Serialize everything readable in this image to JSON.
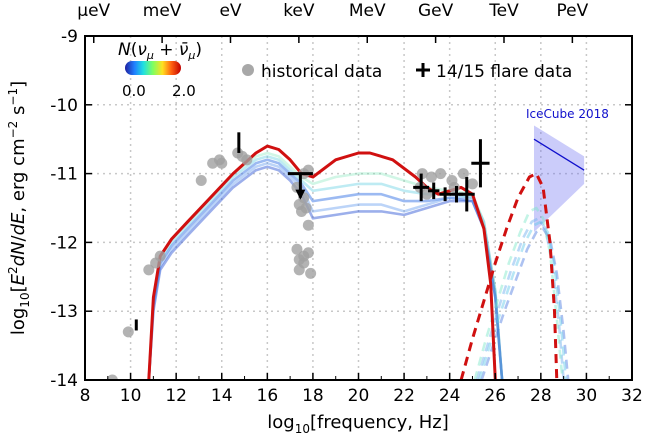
{
  "chart_data": {
    "type": "line",
    "xlabel": "log$_{10}$[frequency, Hz]",
    "ylabel": "log$_{10}$[$E^2dN/dE$,  erg cm$^{-2}$ s$^{-1}$]",
    "xlim": [
      8,
      32
    ],
    "ylim": [
      -14,
      -9
    ],
    "x_ticks": [
      "8",
      "10",
      "12",
      "14",
      "16",
      "18",
      "20",
      "22",
      "24",
      "26",
      "28",
      "30",
      "32"
    ],
    "y_ticks": [
      "-14",
      "-13",
      "-12",
      "-11",
      "-10",
      "-9"
    ],
    "top_axis": {
      "labels": [
        "μeV",
        "meV",
        "eV",
        "keV",
        "MeV",
        "GeV",
        "TeV",
        "PeV"
      ],
      "energy_eV": [
        1e-06,
        0.001,
        1,
        1000,
        1000000,
        1000000000,
        1000000000000,
        1000000000000000
      ]
    },
    "grid": true,
    "colorbar": {
      "title": "N(ν_μ + ν̄_μ)",
      "min_label": "0.0",
      "max_label": "2.0",
      "colors": [
        "#2020a0",
        "#2080ff",
        "#20e0e0",
        "#80ff60",
        "#ffe020",
        "#ff6010",
        "#c00000"
      ]
    },
    "legend": [
      {
        "label": "historical data",
        "marker": "circle",
        "color": "#a8a8a8"
      },
      {
        "label": "14/15 flare data",
        "marker": "cross",
        "color": "#000000"
      }
    ],
    "annotation": {
      "text": "IceCube 2018",
      "color": "#1010cc"
    },
    "icecube": {
      "x": [
        27.7,
        29.9
      ],
      "y": [
        -10.5,
        -10.95
      ],
      "band_upper": [
        -10.3,
        -10.75
      ],
      "band_lower": [
        -11.85,
        -11.15
      ]
    },
    "historical_data": {
      "x": [
        9.2,
        9.9,
        10.8,
        11.1,
        11.3,
        13.1,
        13.6,
        13.9,
        14.0,
        14.7,
        14.9,
        15.1,
        17.3,
        17.6,
        17.8,
        17.4,
        17.5,
        17.6,
        17.7,
        17.8,
        17.3,
        17.4,
        17.6,
        17.8,
        17.6,
        17.4,
        17.9,
        22.8,
        23.2,
        23.6,
        24.1,
        24.6,
        25.0,
        22.7,
        23.0,
        24.2
      ],
      "y": [
        -14.0,
        -13.3,
        -12.4,
        -12.3,
        -12.2,
        -11.1,
        -10.85,
        -10.8,
        -10.85,
        -10.7,
        -10.75,
        -10.8,
        -11.2,
        -11.0,
        -10.95,
        -11.45,
        -11.55,
        -11.35,
        -11.5,
        -11.75,
        -12.1,
        -12.25,
        -12.2,
        -12.15,
        -12.3,
        -12.4,
        -12.45,
        -11.0,
        -11.05,
        -11.0,
        -11.1,
        -11.0,
        -11.15,
        -11.2,
        -11.3,
        -11.2
      ]
    },
    "flare_data": [
      {
        "x": 10.25,
        "y": -13.2,
        "xerr": 0,
        "yerr": 0.08,
        "upper_limit": false
      },
      {
        "x": 14.75,
        "y": -10.55,
        "xerr": 0,
        "yerr": 0.15,
        "upper_limit": false
      },
      {
        "x": 17.45,
        "y": -11.0,
        "xerr": 0.55,
        "yerr": 0,
        "upper_limit": true
      },
      {
        "x": 22.75,
        "y": -11.2,
        "xerr": 0.35,
        "yerr": 0.2,
        "upper_limit": false
      },
      {
        "x": 23.3,
        "y": -11.25,
        "xerr": 0.25,
        "yerr": 0.12,
        "upper_limit": false
      },
      {
        "x": 23.8,
        "y": -11.3,
        "xerr": 0.25,
        "yerr": 0.1,
        "upper_limit": false
      },
      {
        "x": 24.3,
        "y": -11.3,
        "xerr": 0.3,
        "yerr": 0.12,
        "upper_limit": false
      },
      {
        "x": 24.75,
        "y": -11.3,
        "xerr": 0.35,
        "yerr": 0.25,
        "upper_limit": false
      },
      {
        "x": 25.35,
        "y": -10.85,
        "xerr": 0.4,
        "yerr": 0.35,
        "upper_limit": false
      }
    ],
    "series": [
      {
        "color": "#d01010",
        "style": "solid",
        "x": [
          10.8,
          11.0,
          11.3,
          11.8,
          12.5,
          13.5,
          14.5,
          15.5,
          16.0,
          16.5,
          17.0,
          17.5,
          18.0,
          19.0,
          20.0,
          20.5,
          21.5,
          22.5,
          23.0,
          23.5,
          24.5,
          25.0,
          25.5,
          25.8,
          26.0
        ],
        "y": [
          -14.0,
          -12.8,
          -12.2,
          -11.95,
          -11.7,
          -11.35,
          -11.0,
          -10.7,
          -10.6,
          -10.65,
          -10.8,
          -11.0,
          -11.05,
          -10.8,
          -10.7,
          -10.7,
          -10.8,
          -11.05,
          -11.2,
          -11.3,
          -11.2,
          -11.3,
          -11.8,
          -12.6,
          -14.0
        ]
      },
      {
        "color": "#4a82e8",
        "style": "solid",
        "opacity": 0.55,
        "x": [
          10.8,
          11.0,
          11.3,
          11.8,
          12.5,
          13.5,
          14.5,
          15.5,
          16.0,
          16.5,
          17.0,
          17.5,
          18.0,
          19.0,
          20.0,
          21.0,
          22.0,
          23.0,
          24.0,
          25.0,
          25.5,
          26.0,
          26.3
        ],
        "y": [
          -14.0,
          -12.9,
          -12.3,
          -12.05,
          -11.8,
          -11.45,
          -11.1,
          -10.85,
          -10.8,
          -10.85,
          -11.0,
          -11.15,
          -11.4,
          -11.35,
          -11.3,
          -11.3,
          -11.4,
          -11.4,
          -11.35,
          -11.4,
          -11.8,
          -12.8,
          -14.0
        ]
      },
      {
        "color": "#6aa0f0",
        "style": "solid",
        "opacity": 0.45,
        "x": [
          10.8,
          11.0,
          11.3,
          11.8,
          12.5,
          13.5,
          14.5,
          15.5,
          16.0,
          16.5,
          17.0,
          17.5,
          18.0,
          19.0,
          20.0,
          21.0,
          22.0,
          23.0,
          24.0,
          25.0,
          25.5,
          26.0,
          26.3
        ],
        "y": [
          -14.0,
          -12.95,
          -12.35,
          -12.1,
          -11.85,
          -11.5,
          -11.15,
          -10.9,
          -10.85,
          -10.9,
          -11.05,
          -11.2,
          -11.55,
          -11.5,
          -11.45,
          -11.45,
          -11.55,
          -11.45,
          -11.35,
          -11.35,
          -11.7,
          -12.7,
          -14.0
        ]
      },
      {
        "color": "#5ccce0",
        "style": "solid",
        "opacity": 0.4,
        "x": [
          10.8,
          11.0,
          11.3,
          11.8,
          12.5,
          13.5,
          14.5,
          15.5,
          16.0,
          16.5,
          17.0,
          17.5,
          18.0,
          19.0,
          20.0,
          21.0,
          22.0,
          23.0,
          24.0,
          25.0,
          25.5,
          26.0,
          26.3
        ],
        "y": [
          -14.0,
          -12.85,
          -12.25,
          -12.0,
          -11.75,
          -11.4,
          -11.05,
          -10.8,
          -10.75,
          -10.8,
          -10.95,
          -11.1,
          -11.25,
          -11.2,
          -11.15,
          -11.15,
          -11.25,
          -11.3,
          -11.3,
          -11.35,
          -11.75,
          -12.75,
          -14.0
        ]
      },
      {
        "color": "#7ae6b8",
        "style": "solid",
        "opacity": 0.35,
        "x": [
          10.8,
          11.0,
          11.3,
          11.8,
          12.5,
          13.5,
          14.5,
          15.5,
          16.0,
          16.5,
          17.0,
          17.5,
          18.0,
          19.0,
          20.0,
          21.0,
          22.0,
          23.0,
          24.0,
          25.0,
          25.5,
          26.0,
          26.3
        ],
        "y": [
          -14.0,
          -12.8,
          -12.2,
          -11.95,
          -11.7,
          -11.35,
          -11.0,
          -10.75,
          -10.7,
          -10.75,
          -10.9,
          -11.05,
          -11.15,
          -11.05,
          -11.0,
          -11.0,
          -11.1,
          -11.2,
          -11.25,
          -11.3,
          -11.7,
          -12.7,
          -14.0
        ]
      },
      {
        "color": "#3a5fd8",
        "style": "solid",
        "opacity": 0.5,
        "x": [
          10.8,
          11.0,
          11.3,
          11.8,
          12.5,
          13.5,
          14.5,
          15.5,
          16.0,
          16.5,
          17.0,
          17.5,
          18.0,
          19.0,
          20.0,
          21.0,
          22.0,
          23.0,
          24.0,
          25.0,
          25.5,
          26.0,
          26.3
        ],
        "y": [
          -14.0,
          -13.0,
          -12.4,
          -12.15,
          -11.9,
          -11.55,
          -11.2,
          -10.95,
          -10.9,
          -10.95,
          -11.1,
          -11.3,
          -11.65,
          -11.6,
          -11.55,
          -11.55,
          -11.6,
          -11.5,
          -11.4,
          -11.4,
          -11.8,
          -12.8,
          -14.0
        ]
      },
      {
        "color": "#d01010",
        "style": "dashed",
        "x": [
          24.5,
          25.0,
          25.5,
          26.0,
          26.5,
          27.0,
          27.5,
          27.8,
          28.1,
          28.4,
          28.6,
          28.7
        ],
        "y": [
          -14.0,
          -13.4,
          -12.85,
          -12.3,
          -11.8,
          -11.35,
          -11.05,
          -11.0,
          -11.2,
          -12.0,
          -13.0,
          -14.0
        ]
      },
      {
        "color": "#7ab4f0",
        "style": "dashed",
        "opacity": 0.5,
        "x": [
          25.2,
          25.7,
          26.2,
          26.7,
          27.2,
          27.6,
          27.9,
          28.2,
          28.5,
          28.8,
          29.0
        ],
        "y": [
          -14.0,
          -13.45,
          -12.9,
          -12.4,
          -11.95,
          -11.7,
          -11.65,
          -11.8,
          -12.3,
          -13.2,
          -14.0
        ]
      },
      {
        "color": "#7ae6c8",
        "style": "dashed",
        "opacity": 0.45,
        "x": [
          25.1,
          25.6,
          26.1,
          26.6,
          27.1,
          27.5,
          27.8,
          28.1,
          28.4,
          28.7,
          28.95
        ],
        "y": [
          -14.0,
          -13.4,
          -12.85,
          -12.3,
          -11.85,
          -11.55,
          -11.5,
          -11.65,
          -12.15,
          -13.1,
          -14.0
        ]
      },
      {
        "color": "#4a78e0",
        "style": "dashed",
        "opacity": 0.45,
        "x": [
          25.4,
          25.9,
          26.4,
          26.9,
          27.4,
          27.8,
          28.1,
          28.4,
          28.7,
          29.0,
          29.2
        ],
        "y": [
          -14.0,
          -13.5,
          -13.0,
          -12.55,
          -12.1,
          -11.85,
          -11.8,
          -11.95,
          -12.45,
          -13.3,
          -14.0
        ]
      },
      {
        "color": "#60c8e8",
        "style": "dashed",
        "opacity": 0.45,
        "x": [
          25.3,
          25.8,
          26.3,
          26.8,
          27.3,
          27.7,
          28.0,
          28.3,
          28.6,
          28.9,
          29.1
        ],
        "y": [
          -14.0,
          -13.45,
          -12.95,
          -12.45,
          -12.0,
          -11.75,
          -11.7,
          -11.85,
          -12.35,
          -13.25,
          -14.0
        ]
      }
    ]
  }
}
